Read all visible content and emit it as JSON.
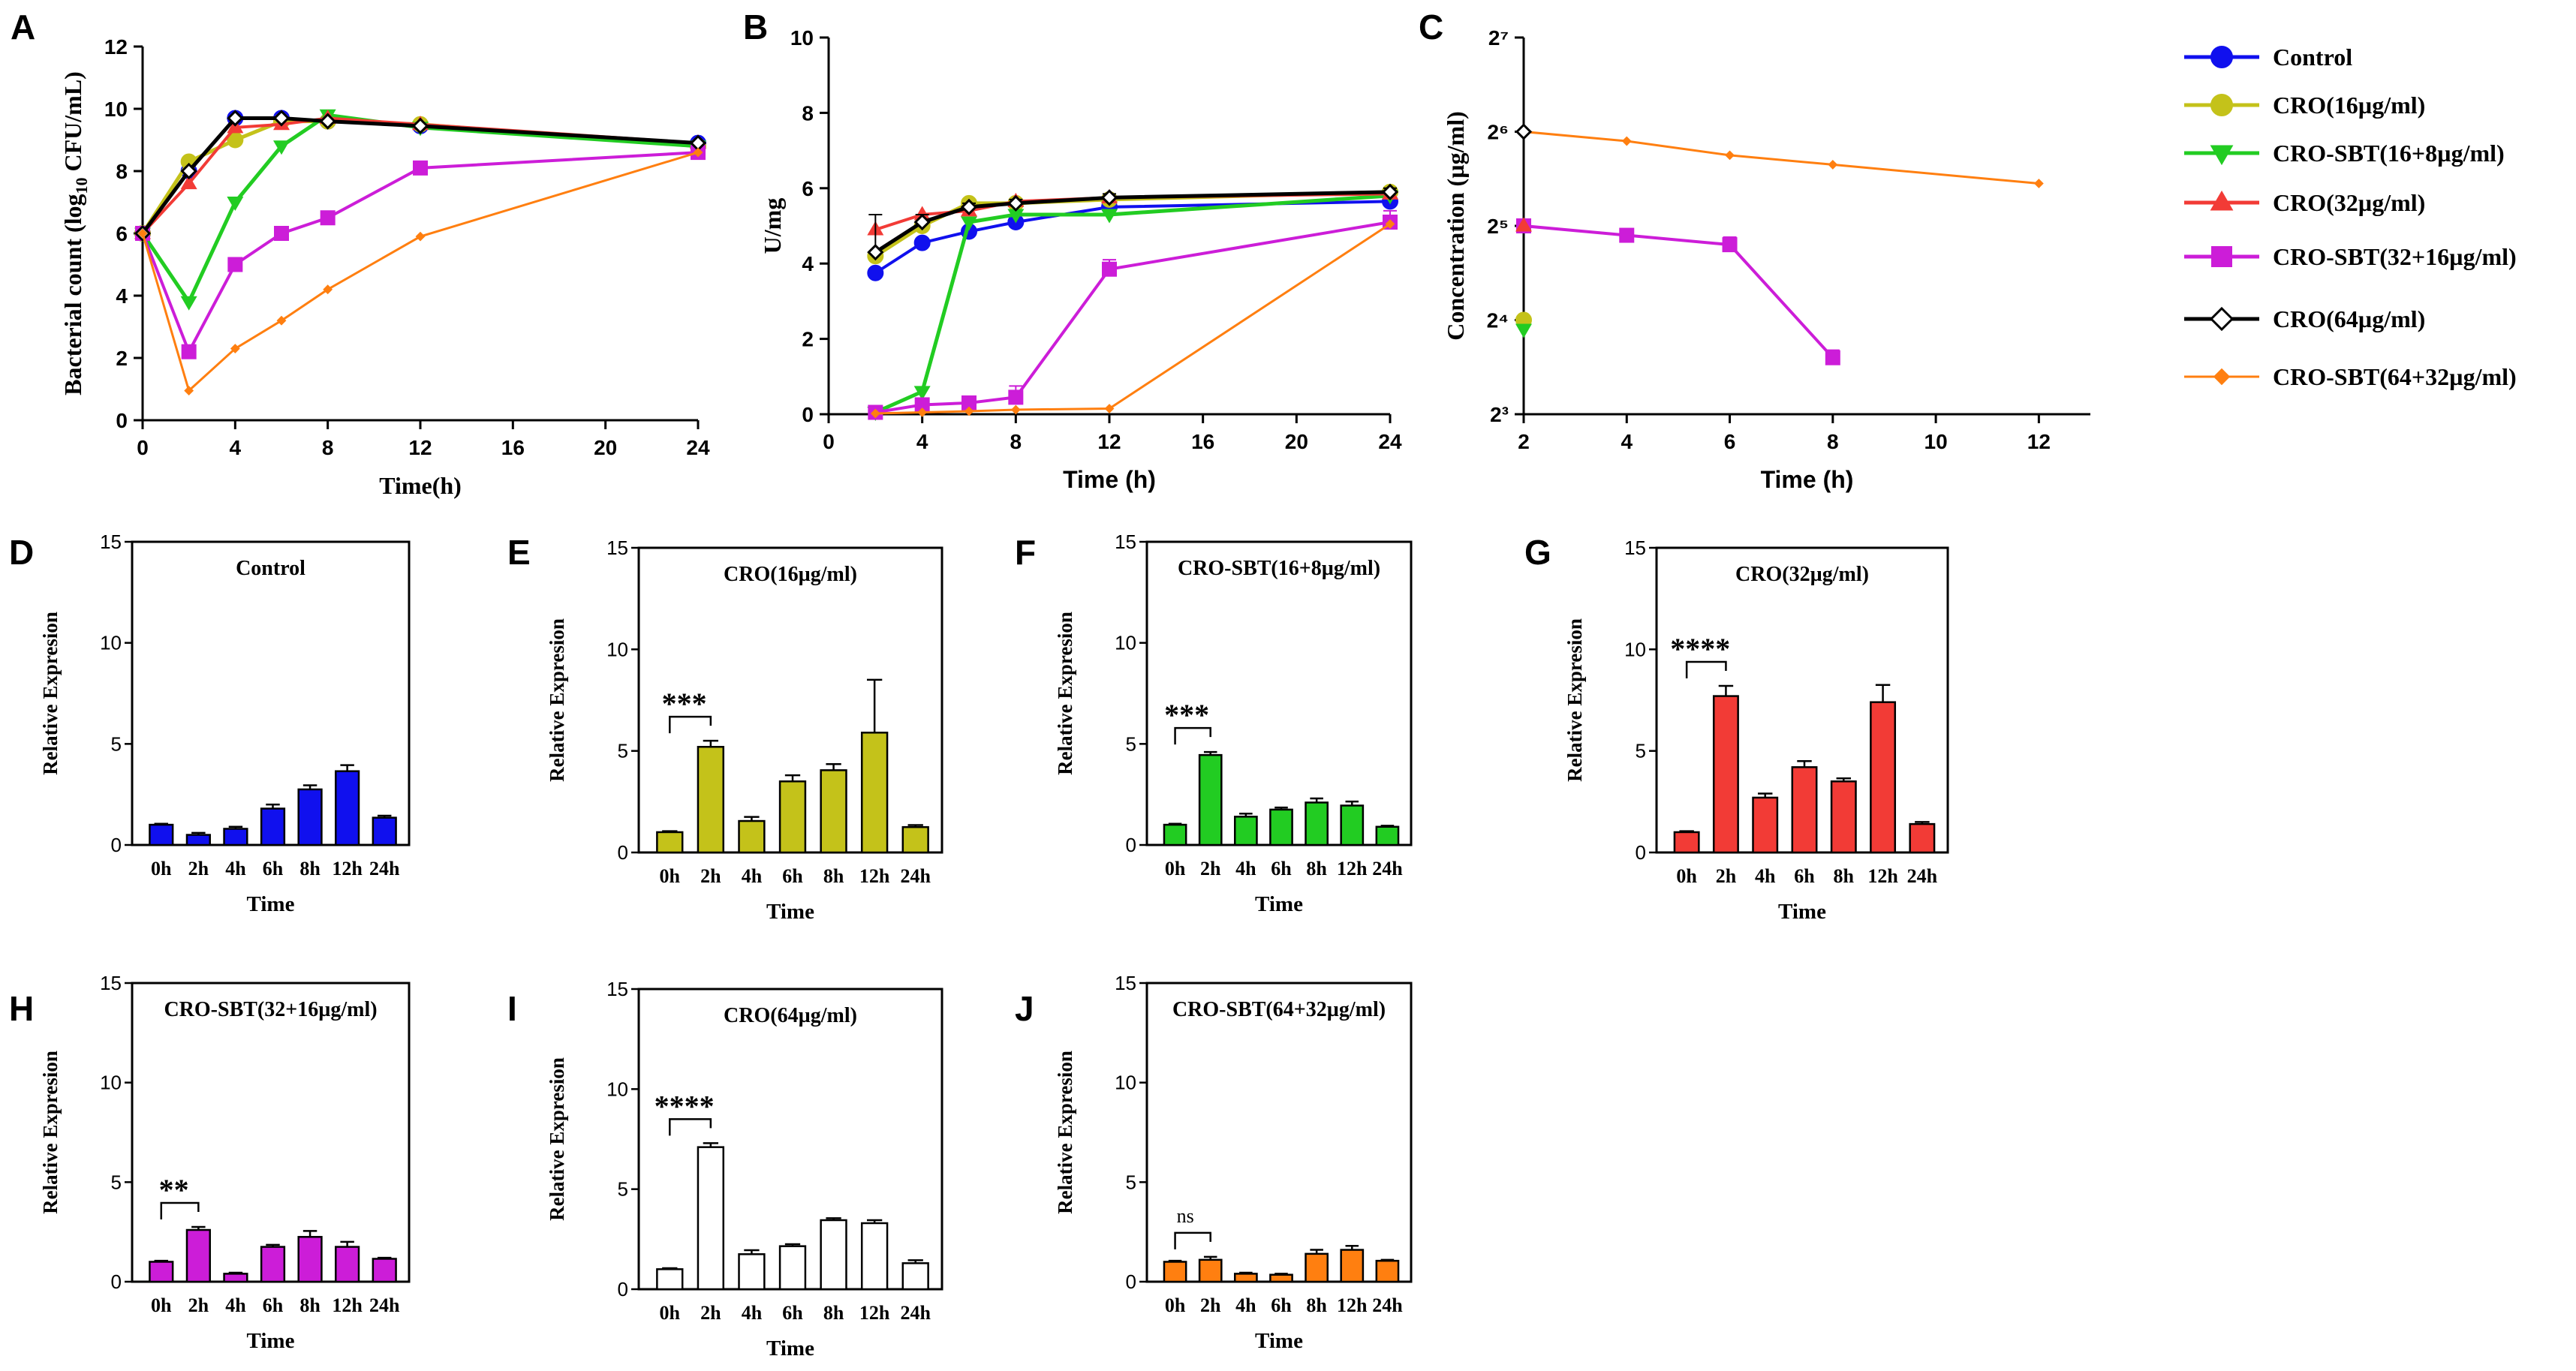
{
  "colors": {
    "control": "#1010ee",
    "cro16": "#c4c21a",
    "crosbt16": "#22cc22",
    "cro32": "#f23b36",
    "crosbt32": "#cc1dd8",
    "cro64": "#ffffff",
    "crosbt64": "#ff7f10",
    "axis": "#000000"
  },
  "legend": {
    "items": [
      {
        "key": "control",
        "label": "Control",
        "marker": "circle",
        "color": "#1010ee"
      },
      {
        "key": "cro16",
        "label": "CRO(16µg/ml)",
        "marker": "circle",
        "color": "#c4c21a"
      },
      {
        "key": "crosbt16",
        "label": "CRO-SBT(16+8µg/ml)",
        "marker": "triangle-down",
        "color": "#22cc22"
      },
      {
        "key": "cro32",
        "label": "CRO(32µg/ml)",
        "marker": "triangle-up",
        "color": "#f23b36"
      },
      {
        "key": "crosbt32",
        "label": "CRO-SBT(32+16µg/ml)",
        "marker": "square",
        "color": "#cc1dd8"
      },
      {
        "key": "cro64",
        "label": "CRO(64µg/ml)",
        "marker": "diamond-open",
        "color": "#000000"
      },
      {
        "key": "crosbt64",
        "label": "CRO-SBT(64+32µg/ml)",
        "marker": "diamond",
        "color": "#ff7f10"
      }
    ]
  },
  "chart_data": [
    {
      "id": "A",
      "type": "line",
      "panel_label": "A",
      "xlabel": "Time(h)",
      "ylabel": "Bacterial count (log10 CFU/mL)",
      "ylabel_main": "Bacterial count (log",
      "ylabel_sub": "10",
      "ylabel_tail": " CFU/mL)",
      "xlim": [
        0,
        24
      ],
      "ylim": [
        0,
        12
      ],
      "xticks": [
        0,
        4,
        8,
        12,
        16,
        20,
        24
      ],
      "xtick_labels": [
        "0",
        "4",
        "8",
        "12",
        "16",
        "20",
        "24"
      ],
      "yticks": [
        0,
        2,
        4,
        6,
        8,
        10,
        12
      ],
      "ytick_labels": [
        "0",
        "2",
        "4",
        "6",
        "8",
        "10",
        "12"
      ],
      "series": [
        {
          "name": "Control",
          "key": "control",
          "x": [
            0,
            2,
            4,
            6,
            8,
            12,
            24
          ],
          "y": [
            6.0,
            8.0,
            9.7,
            9.7,
            9.6,
            9.45,
            8.9
          ]
        },
        {
          "name": "CRO(16µg/ml)",
          "key": "cro16",
          "x": [
            0,
            2,
            4,
            6,
            8,
            12,
            24
          ],
          "y": [
            6.0,
            8.3,
            9.0,
            9.6,
            9.6,
            9.5,
            8.8
          ]
        },
        {
          "name": "CRO-SBT(16+8µg/ml)",
          "key": "crosbt16",
          "x": [
            0,
            2,
            4,
            6,
            8,
            12,
            24
          ],
          "y": [
            6.0,
            3.8,
            7.0,
            8.8,
            9.8,
            9.4,
            8.8
          ]
        },
        {
          "name": "CRO(32µg/ml)",
          "key": "cro32",
          "x": [
            0,
            2,
            4,
            6,
            8,
            12,
            24
          ],
          "y": [
            6.0,
            7.6,
            9.4,
            9.5,
            9.7,
            9.5,
            8.9
          ]
        },
        {
          "name": "CRO-SBT(32+16µg/ml)",
          "key": "crosbt32",
          "x": [
            0,
            2,
            4,
            6,
            8,
            12,
            24
          ],
          "y": [
            6.0,
            2.2,
            5.0,
            6.0,
            6.5,
            8.1,
            8.6
          ]
        },
        {
          "name": "CRO(64µg/ml)",
          "key": "cro64",
          "x": [
            0,
            2,
            4,
            6,
            8,
            12,
            24
          ],
          "y": [
            6.0,
            8.0,
            9.7,
            9.7,
            9.6,
            9.45,
            8.9
          ]
        },
        {
          "name": "CRO-SBT(64+32µg/ml)",
          "key": "crosbt64",
          "x": [
            0,
            2,
            4,
            6,
            8,
            12,
            24
          ],
          "y": [
            6.0,
            0.95,
            2.3,
            3.2,
            4.2,
            5.9,
            8.6
          ]
        }
      ]
    },
    {
      "id": "B",
      "type": "line",
      "panel_label": "B",
      "xlabel": "Time (h)",
      "ylabel": "U/mg",
      "xlim": [
        0,
        24
      ],
      "ylim": [
        0,
        10
      ],
      "xticks": [
        0,
        4,
        8,
        12,
        16,
        20,
        24
      ],
      "xtick_labels": [
        "0",
        "4",
        "8",
        "12",
        "16",
        "20",
        "24"
      ],
      "yticks": [
        0,
        2,
        4,
        6,
        8,
        10
      ],
      "ytick_labels": [
        "0",
        "2",
        "4",
        "6",
        "8",
        "10"
      ],
      "series": [
        {
          "name": "Control",
          "key": "control",
          "x": [
            2,
            4,
            6,
            8,
            12,
            24
          ],
          "y": [
            3.75,
            4.55,
            4.85,
            5.1,
            5.5,
            5.65
          ]
        },
        {
          "name": "CRO(16µg/ml)",
          "key": "cro16",
          "x": [
            2,
            4,
            6,
            8,
            12,
            24
          ],
          "y": [
            4.2,
            5.0,
            5.6,
            5.6,
            5.7,
            5.9
          ]
        },
        {
          "name": "CRO-SBT(16+8µg/ml)",
          "key": "crosbt16",
          "x": [
            2,
            4,
            6,
            8,
            12,
            24
          ],
          "y": [
            0.05,
            0.6,
            5.1,
            5.3,
            5.3,
            5.8
          ]
        },
        {
          "name": "CRO(32µg/ml)",
          "key": "cro32",
          "x": [
            2,
            4,
            6,
            8,
            12,
            24
          ],
          "y": [
            4.9,
            5.3,
            5.4,
            5.65,
            5.75,
            5.85
          ]
        },
        {
          "name": "CRO-SBT(32+16µg/ml)",
          "key": "crosbt32",
          "x": [
            2,
            4,
            6,
            8,
            12,
            24
          ],
          "y": [
            0.05,
            0.25,
            0.3,
            0.45,
            3.85,
            5.1
          ],
          "err": [
            0.05,
            0.1,
            0.15,
            0.3,
            0.25,
            0.3
          ]
        },
        {
          "name": "CRO(64µg/ml)",
          "key": "cro64",
          "x": [
            2,
            4,
            6,
            8,
            12,
            24
          ],
          "y": [
            4.3,
            5.1,
            5.5,
            5.6,
            5.75,
            5.9
          ],
          "err": [
            1.0,
            0.2,
            0.1,
            0.1,
            0.1,
            0.1
          ]
        },
        {
          "name": "CRO-SBT(64+32µg/ml)",
          "key": "crosbt64",
          "x": [
            2,
            4,
            6,
            8,
            12,
            24
          ],
          "y": [
            0.02,
            0.05,
            0.08,
            0.12,
            0.15,
            5.05
          ]
        }
      ]
    },
    {
      "id": "C",
      "type": "line",
      "panel_label": "C",
      "xlabel": "Time (h)",
      "ylabel": "Concentration (µg/ml)",
      "yscale": "log2",
      "xlim": [
        2,
        13
      ],
      "ylim": [
        3,
        7
      ],
      "xticks": [
        2,
        4,
        6,
        8,
        10,
        12
      ],
      "xtick_labels": [
        "2",
        "4",
        "6",
        "8",
        "10",
        "12"
      ],
      "yticks": [
        3,
        4,
        5,
        6,
        7
      ],
      "ytick_labels": [
        "2³",
        "2⁴",
        "2⁵",
        "2⁶",
        "2⁷"
      ],
      "series": [
        {
          "name": "CRO-SBT(64+32µg/ml)",
          "key": "crosbt64",
          "x": [
            2,
            4,
            6,
            8,
            12
          ],
          "y_log2": [
            6.0,
            5.9,
            5.75,
            5.65,
            5.45
          ]
        },
        {
          "name": "CRO(64µg/ml)",
          "key": "cro64",
          "x": [
            2
          ],
          "y_log2": [
            6.0
          ]
        },
        {
          "name": "CRO-SBT(32+16µg/ml)",
          "key": "crosbt32",
          "x": [
            2,
            4,
            6,
            8
          ],
          "y_log2": [
            5.0,
            4.9,
            4.8,
            3.6
          ],
          "err": [
            0.05,
            0.05,
            0.08,
            0.08
          ]
        },
        {
          "name": "CRO(32µg/ml)",
          "key": "cro32",
          "x": [
            2
          ],
          "y_log2": [
            5.0
          ]
        },
        {
          "name": "CRO(16µg/ml)",
          "key": "cro16",
          "x": [
            2
          ],
          "y_log2": [
            4.0
          ]
        },
        {
          "name": "CRO-SBT(16+8µg/ml)",
          "key": "crosbt16",
          "x": [
            2
          ],
          "y_log2": [
            3.9
          ]
        }
      ]
    },
    {
      "id": "D",
      "type": "bar",
      "panel_label": "D",
      "title": "Control",
      "key": "control",
      "categories": [
        "0h",
        "2h",
        "4h",
        "6h",
        "8h",
        "12h",
        "24h"
      ],
      "values": [
        1.0,
        0.5,
        0.8,
        1.8,
        2.75,
        3.65,
        1.35
      ],
      "err": [
        0.05,
        0.1,
        0.1,
        0.2,
        0.2,
        0.3,
        0.1
      ],
      "ylim": [
        0,
        15
      ],
      "yticks": [
        0,
        5,
        10,
        15
      ],
      "xlabel": "Time",
      "ylabel": "Relative Expresion"
    },
    {
      "id": "E",
      "type": "bar",
      "panel_label": "E",
      "title": "CRO(16µg/ml)",
      "key": "cro16",
      "categories": [
        "0h",
        "2h",
        "4h",
        "6h",
        "8h",
        "12h",
        "24h"
      ],
      "values": [
        1.0,
        5.2,
        1.55,
        3.5,
        4.05,
        5.9,
        1.25
      ],
      "err": [
        0.05,
        0.3,
        0.2,
        0.3,
        0.3,
        2.6,
        0.1
      ],
      "ylim": [
        0,
        15
      ],
      "yticks": [
        0,
        5,
        10,
        15
      ],
      "xlabel": "Time",
      "ylabel": "Relative Expresion",
      "sig": "***"
    },
    {
      "id": "F",
      "type": "bar",
      "panel_label": "F",
      "title": "CRO-SBT(16+8µg/ml)",
      "key": "crosbt16",
      "categories": [
        "0h",
        "2h",
        "4h",
        "6h",
        "8h",
        "12h",
        "24h"
      ],
      "values": [
        1.0,
        4.45,
        1.4,
        1.75,
        2.1,
        1.95,
        0.9
      ],
      "err": [
        0.05,
        0.15,
        0.15,
        0.1,
        0.2,
        0.2,
        0.05
      ],
      "ylim": [
        0,
        15
      ],
      "yticks": [
        0,
        5,
        10,
        15
      ],
      "xlabel": "Time",
      "ylabel": "Relative Expresion",
      "sig": "***"
    },
    {
      "id": "G",
      "type": "bar",
      "panel_label": "G",
      "title": "CRO(32µg/ml)",
      "key": "cro32",
      "categories": [
        "0h",
        "2h",
        "4h",
        "6h",
        "8h",
        "12h",
        "24h"
      ],
      "values": [
        1.0,
        7.7,
        2.7,
        4.2,
        3.5,
        7.4,
        1.4
      ],
      "err": [
        0.05,
        0.5,
        0.2,
        0.3,
        0.15,
        0.85,
        0.1
      ],
      "ylim": [
        0,
        15
      ],
      "yticks": [
        0,
        5,
        10,
        15
      ],
      "xlabel": "Time",
      "ylabel": "Relative Expresion",
      "sig": "****"
    },
    {
      "id": "H",
      "type": "bar",
      "panel_label": "H",
      "title": "CRO-SBT(32+16µg/ml)",
      "key": "crosbt32",
      "categories": [
        "0h",
        "2h",
        "4h",
        "6h",
        "8h",
        "12h",
        "24h"
      ],
      "values": [
        1.0,
        2.6,
        0.4,
        1.75,
        2.25,
        1.75,
        1.15
      ],
      "err": [
        0.05,
        0.15,
        0.05,
        0.1,
        0.3,
        0.25,
        0.05
      ],
      "ylim": [
        0,
        15
      ],
      "yticks": [
        0,
        5,
        10,
        15
      ],
      "xlabel": "Time",
      "ylabel": "Relative Expresion",
      "sig": "**"
    },
    {
      "id": "I",
      "type": "bar",
      "panel_label": "I",
      "title": "CRO(64µg/ml)",
      "key": "cro64",
      "categories": [
        "0h",
        "2h",
        "4h",
        "6h",
        "8h",
        "12h",
        "24h"
      ],
      "values": [
        1.0,
        7.1,
        1.75,
        2.15,
        3.45,
        3.3,
        1.3
      ],
      "err": [
        0.05,
        0.2,
        0.2,
        0.1,
        0.1,
        0.15,
        0.15
      ],
      "ylim": [
        0,
        15
      ],
      "yticks": [
        0,
        5,
        10,
        15
      ],
      "xlabel": "Time",
      "ylabel": "Relative Expresion",
      "sig": "****"
    },
    {
      "id": "J",
      "type": "bar",
      "panel_label": "J",
      "title": "CRO-SBT(64+32µg/ml)",
      "key": "crosbt64",
      "categories": [
        "0h",
        "2h",
        "4h",
        "6h",
        "8h",
        "12h",
        "24h"
      ],
      "values": [
        1.0,
        1.1,
        0.4,
        0.35,
        1.4,
        1.6,
        1.05
      ],
      "err": [
        0.05,
        0.15,
        0.05,
        0.05,
        0.2,
        0.2,
        0.05
      ],
      "ylim": [
        0,
        15
      ],
      "yticks": [
        0,
        5,
        10,
        15
      ],
      "xlabel": "Time",
      "ylabel": "Relative Expresion",
      "sig": "ns"
    }
  ]
}
